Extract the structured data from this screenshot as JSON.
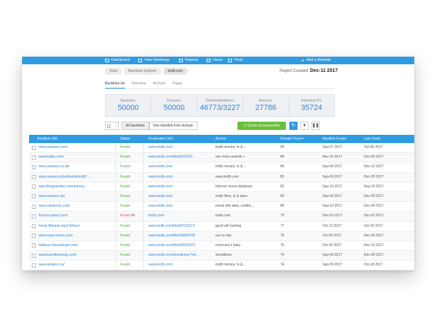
{
  "nav": {
    "items": [
      {
        "label": "Dashboard"
      },
      {
        "label": "View Rankings"
      },
      {
        "label": "Reports"
      },
      {
        "label": "Users"
      },
      {
        "label": "Tools"
      }
    ],
    "add_website": "Add a Website"
  },
  "breadcrumb": [
    "Tools",
    "Backlinks Explorer",
    "imdb.com"
  ],
  "report": {
    "label": "Report Created",
    "date": "Dec-11 2017"
  },
  "tabs": [
    "Backlinks list",
    "Overview",
    "Anchors",
    "Pages"
  ],
  "stats": [
    {
      "label": "Backlinks:",
      "value": "50000"
    },
    {
      "label": "Domains:",
      "value": "50000"
    },
    {
      "label": "Dofollow/Nofollow:",
      "value": "46773/3227"
    },
    {
      "label": "Anchors:",
      "value": "27786"
    },
    {
      "label": "Referring IPs:",
      "value": "35724"
    }
  ],
  "filters": {
    "all": "All backlinks",
    "one": "One backlink from domain"
  },
  "check_button": "Check all parameters",
  "table": {
    "headers": [
      "Backlink URL",
      "Status",
      "Destination URL",
      "Anchor",
      "Domain Trust ▾",
      "Backlink Found",
      "Last check"
    ],
    "rows": [
      {
        "url": "www.amazon.com/",
        "status": "Found",
        "dest": "www.imdb.com/",
        "anchor": "imdb movies, tv &...",
        "dt": "95",
        "found": "Sep-27 2017",
        "check": "Oct-05 2017"
      },
      {
        "url": "www.baidu.com/",
        "status": "Found",
        "dest": "www.imdb.com/title/tt010252...",
        "anchor": "see more awards »",
        "dt": "84",
        "found": "Nov-20 2017",
        "check": "Dec-09 2017"
      },
      {
        "url": "www.amazon.co.uk/",
        "status": "Found",
        "dest": "www.imdb.com/",
        "anchor": "imdb movies, tv &...",
        "dt": "84",
        "found": "Sep-09 2017",
        "check": "Nov-10 2017"
      },
      {
        "url": "www.amazon.jobs/teams/imdb?...",
        "status": "Found",
        "dest": "www.imdb.com/",
        "anchor": "www.imdb.com",
        "dt": "83",
        "found": "Sep-09 2017",
        "check": "Dec-09 2017"
      },
      {
        "url": "www.theguardian.com/interna...",
        "status": "Found",
        "dest": "www.imdb.com/",
        "anchor": "internet movie database",
        "dt": "83",
        "found": "Sep-19 2017",
        "check": "Sep-19 2017"
      },
      {
        "url": "www.amazon.de/",
        "status": "Found",
        "dest": "www.imdb.com/",
        "anchor": "imdb filme, tv & stars",
        "dt": "83",
        "found": "Sep-09 2017",
        "check": "Dec-09 2017"
      },
      {
        "url": "www.metacritic.com/",
        "status": "Found",
        "dest": "www.imdb.com/",
        "anchor": "movie title data, credits,...",
        "dt": "80",
        "found": "Sep-10 2017",
        "check": "Dec-09 2017"
      },
      {
        "url": "forums.opera.com/",
        "status": "Found NF",
        "dest": "imdb.com/",
        "anchor": "imdb.com",
        "dt": "79",
        "found": "Dec-03 2017",
        "check": "Dec-03 2017"
      },
      {
        "url": "feeds.lifehack.org/Lifehack",
        "status": "Found",
        "dest": "www.imdb.com/title/tt0119217/",
        "anchor": "good will hunting",
        "dt": "77",
        "found": "Oct-13 2017",
        "check": "Oct-15 2017"
      },
      {
        "url": "www.macrumors.com/",
        "status": "Found",
        "dest": "www.imdb.com/title/tt0068478/",
        "anchor": "ran on nbc",
        "dt": "76",
        "found": "Oct-09 2017",
        "check": "Dec-09 2017"
      },
      {
        "url": "failblog.cheezburger.com/",
        "status": "Found",
        "dest": "www.imdb.com/title/tt0063522/",
        "anchor": "rosemary's baby",
        "dt": "75",
        "found": "Oct-26 2017",
        "check": "Dec-19 2017"
      },
      {
        "url": "www.boxofficemojo.com/",
        "status": "Found",
        "dest": "www.imdb.com/showtimes/?ref...",
        "anchor": "showtimes",
        "dt": "74",
        "found": "Sep-09 2017",
        "check": "Dec-09 2017"
      },
      {
        "url": "www.amazon.ca/",
        "status": "Found",
        "dest": "www.imdb.com/",
        "anchor": "imdb movies, tv &...",
        "dt": "74",
        "found": "Sep-09 2017",
        "check": "Oct-18 2017"
      }
    ]
  },
  "colors": {
    "primary": "#2f9be0",
    "green": "#6bbf3a",
    "link": "#2f86d6",
    "found": "#4aa82c",
    "notfound": "#e04a3a"
  }
}
